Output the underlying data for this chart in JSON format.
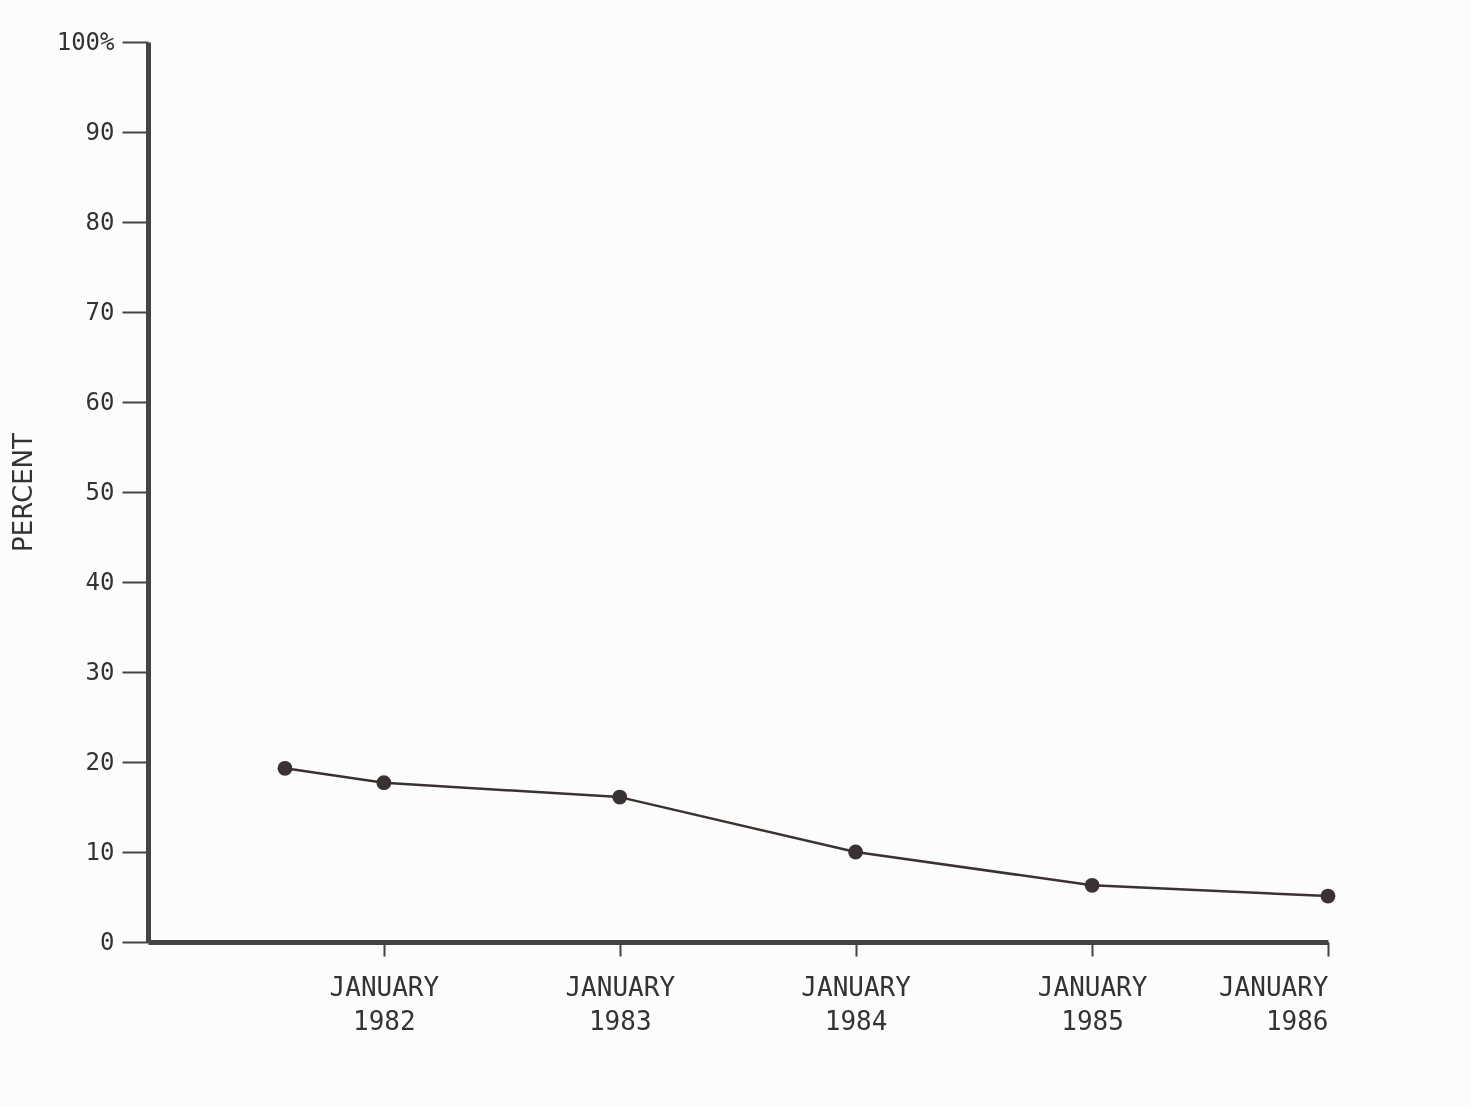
{
  "chart_data": {
    "type": "line",
    "ylabel": "PERCENT",
    "x": [
      "1981-08",
      "1982-01",
      "1983-01",
      "1984-01",
      "1985-01",
      "1986-01"
    ],
    "series": [
      {
        "color": "#3a3232",
        "values": [
          19.3,
          17.7,
          16.1,
          10.0,
          6.3,
          5.1
        ]
      }
    ],
    "xlim": [
      "1981-01",
      "1986-01"
    ],
    "xticks": [
      {
        "value": "1982-01",
        "label": "JANUARY\n1982"
      },
      {
        "value": "1983-01",
        "label": "JANUARY\n1983"
      },
      {
        "value": "1984-01",
        "label": "JANUARY\n1984"
      },
      {
        "value": "1985-01",
        "label": "JANUARY\n1985"
      },
      {
        "value": "1986-01",
        "label": "JANUARY\n1986"
      }
    ],
    "ylim": [
      0,
      100
    ],
    "yticks": [
      0,
      10,
      20,
      30,
      40,
      50,
      60,
      70,
      80,
      90,
      {
        "value": 100,
        "label": "100%"
      }
    ],
    "grid": false,
    "marker": "circle",
    "line_style": "solid"
  }
}
